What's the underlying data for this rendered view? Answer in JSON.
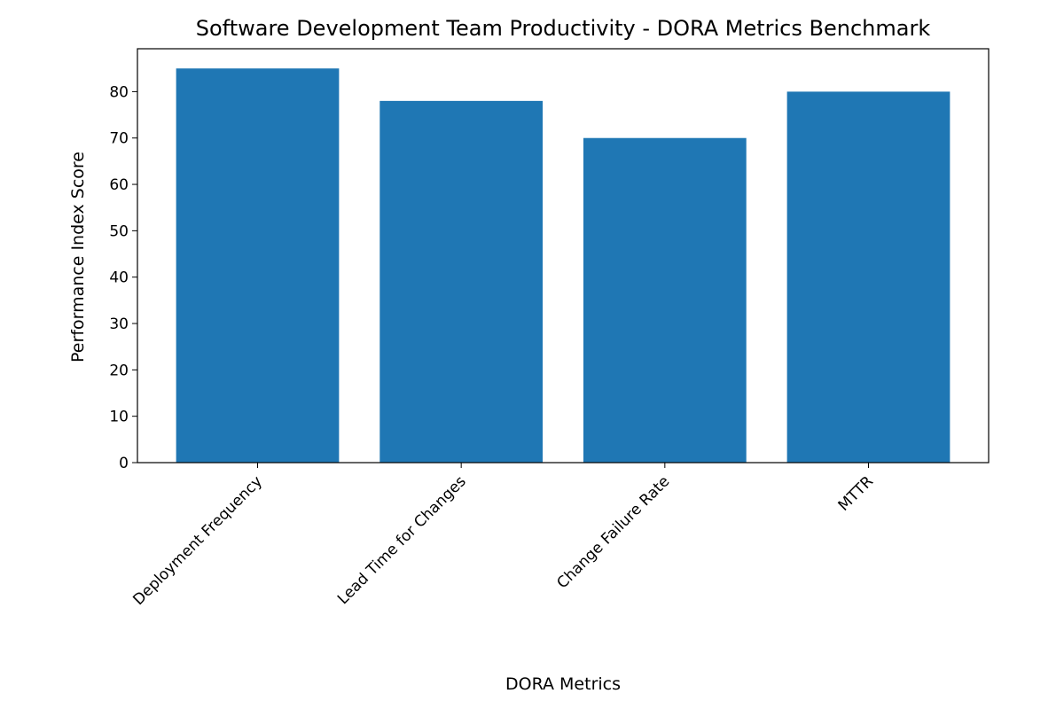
{
  "chart_data": {
    "type": "bar",
    "title": "Software Development Team Productivity - DORA Metrics Benchmark",
    "x_label": "DORA Metrics",
    "y_label": "Performance Index Score",
    "categories": [
      "Deployment Frequency",
      "Lead Time for Changes",
      "Change Failure Rate",
      "MTTR"
    ],
    "values": [
      85,
      78,
      70,
      80
    ],
    "color": "#1f77b4",
    "ylim": [
      0,
      89.25
    ],
    "yticks": [
      0,
      10,
      20,
      30,
      40,
      50,
      60,
      70,
      80
    ],
    "grid": false
  }
}
